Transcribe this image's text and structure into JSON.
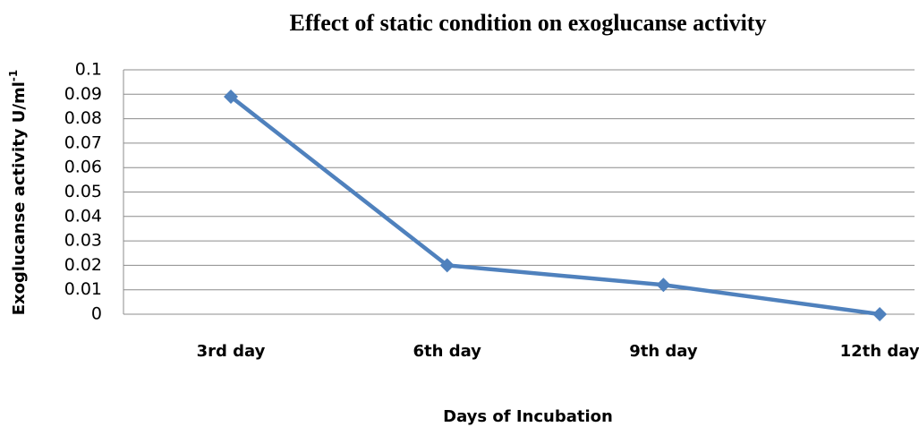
{
  "chart_data": {
    "type": "line",
    "title": "Effect of static condition on exoglucanse activity",
    "x_label": "Days of Incubation",
    "y_label": "Exoglucanse activity U/ml",
    "y_label_superscript": "-1",
    "categories": [
      "3rd day",
      "6th day",
      "9th day",
      "12th day"
    ],
    "series": [
      {
        "color": "#4f81bd",
        "values": [
          0.089,
          0.02,
          0.012,
          0
        ]
      }
    ],
    "ylim": [
      0,
      0.1
    ],
    "yticks": [
      0,
      0.01,
      0.02,
      0.03,
      0.04,
      0.05,
      0.06,
      0.07,
      0.08,
      0.09,
      0.1
    ],
    "grid": true
  }
}
